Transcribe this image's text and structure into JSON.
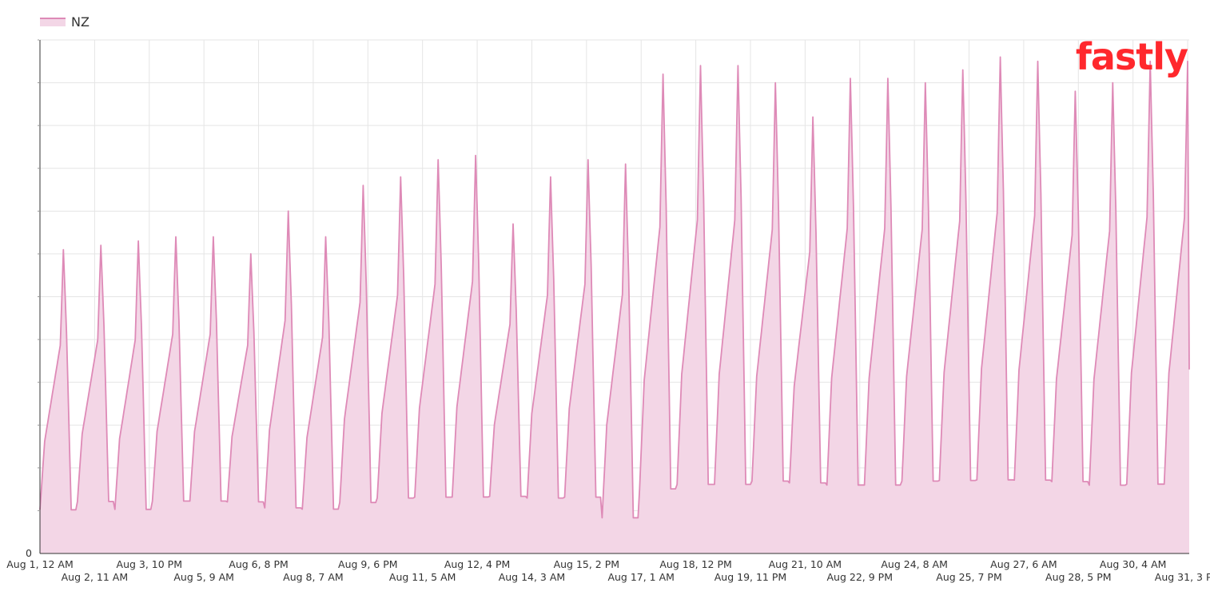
{
  "chart_data": {
    "type": "area",
    "legend_position": "top-left",
    "grid": true,
    "x_ticks_row1": [
      "Aug 1, 12 AM",
      "Aug 3, 10 PM",
      "Aug 6, 8 PM",
      "Aug 9, 6 PM",
      "Aug 12, 4 PM",
      "Aug 15, 2 PM",
      "Aug 18, 12 PM",
      "Aug 21, 10 AM",
      "Aug 24, 8 AM",
      "Aug 27, 6 AM",
      "Aug 30, 4 AM"
    ],
    "x_ticks_row2": [
      "Aug 2, 11 AM",
      "Aug 5, 9 AM",
      "Aug 8, 7 AM",
      "Aug 11, 5 AM",
      "Aug 14, 3 AM",
      "Aug 17, 1 AM",
      "Aug 19, 11 PM",
      "Aug 22, 9 PM",
      "Aug 25, 7 PM",
      "Aug 28, 5 PM",
      "Aug 31, 3 PM"
    ],
    "y_tick_label_zero": "0",
    "ylim": [
      0,
      12
    ],
    "series": [
      {
        "name": "NZ",
        "color": "#de8ab7",
        "fill": "#f3d6e6",
        "x_unit": "day of August",
        "daily_peaks": [
          7.1,
          7.2,
          7.3,
          7.4,
          7.4,
          7.0,
          8.0,
          7.4,
          8.6,
          8.8,
          9.2,
          9.3,
          7.7,
          8.8,
          9.2,
          9.1,
          11.2,
          11.4,
          11.4,
          11.0,
          10.2,
          11.1,
          11.1,
          11.0,
          11.3,
          11.6,
          11.5,
          10.8,
          11.0,
          11.5
        ],
        "daily_troughs": [
          0.7,
          0.9,
          0.7,
          0.9,
          0.9,
          0.9,
          0.7,
          0.7,
          0.8,
          0.9,
          0.9,
          0.9,
          1.0,
          0.9,
          0.9,
          0.4,
          1.0,
          1.1,
          1.1,
          1.2,
          1.2,
          1.1,
          1.1,
          1.2,
          1.2,
          1.2,
          1.2,
          1.2,
          1.1,
          1.1
        ],
        "end_value": 4.3
      }
    ]
  },
  "legend": {
    "series_label": "NZ"
  },
  "logo": {
    "text": "fastly"
  },
  "colors": {
    "line": "#de8ab7",
    "fill": "#f3d6e6",
    "grid": "#e5e5e5",
    "axis": "#333333",
    "logo": "#ff282d"
  }
}
